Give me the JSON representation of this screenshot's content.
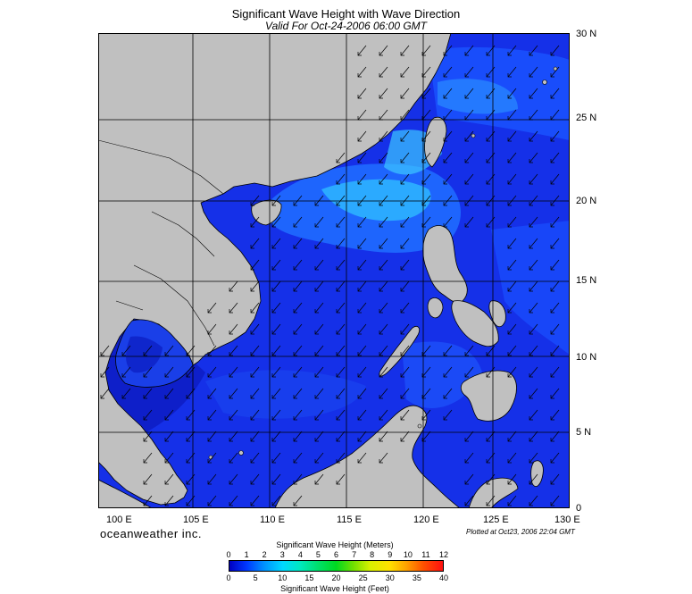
{
  "header": {
    "title": "Significant Wave Height with Wave Direction",
    "subtitle": "Valid For Oct-24-2006 06:00 GMT"
  },
  "map": {
    "lat_labels": [
      "30 N",
      "25 N",
      "20 N",
      "15 N",
      "10 N",
      "5 N",
      "0"
    ],
    "lon_labels": [
      "100 E",
      "105 E",
      "110 E",
      "115 E",
      "120 E",
      "125 E",
      "130 E"
    ],
    "land_color": "#c0c0c0",
    "ocean_base_color": "#1530e8",
    "arrow_direction": "toward southwest"
  },
  "footer": {
    "brand": "oceanweather inc.",
    "plotted": "Plotted at Oct23, 2006 22:04 GMT"
  },
  "colorbar": {
    "title_top": "Significant Wave Height (Meters)",
    "title_bottom": "Significant Wave Height (Feet)",
    "meters_ticks": [
      "0",
      "1",
      "2",
      "3",
      "4",
      "5",
      "6",
      "7",
      "8",
      "9",
      "10",
      "11",
      "12"
    ],
    "feet_ticks": [
      "0",
      "5",
      "10",
      "15",
      "20",
      "25",
      "30",
      "35",
      "40"
    ]
  }
}
